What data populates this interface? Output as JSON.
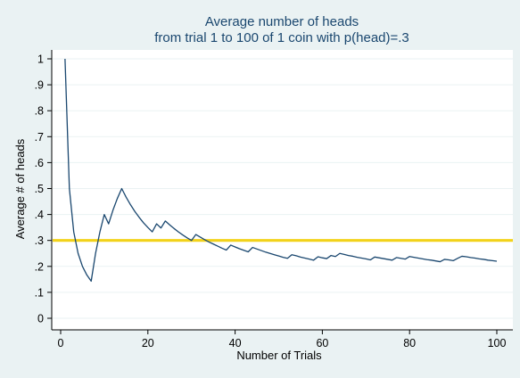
{
  "chart_data": {
    "type": "line",
    "title": "Average number of heads",
    "subtitle": "from trial 1 to 100 of 1 coin with p(head)=.3",
    "xlabel": "Number of Trials",
    "ylabel": "Average # of heads",
    "xlim": [
      0,
      100
    ],
    "ylim": [
      0,
      1
    ],
    "xticks": [
      0,
      20,
      40,
      60,
      80,
      100
    ],
    "xtick_labels": [
      "0",
      "20",
      "40",
      "60",
      "80",
      "100"
    ],
    "yticks": [
      0,
      0.1,
      0.2,
      0.3,
      0.4,
      0.5,
      0.6,
      0.7,
      0.8,
      0.9,
      1
    ],
    "ytick_labels": [
      "0",
      ".1",
      ".2",
      ".3",
      ".4",
      ".5",
      ".6",
      ".7",
      ".8",
      ".9",
      "1"
    ],
    "grid": "horizontal",
    "reference_line": {
      "y": 0.3,
      "color": "#f2d21a"
    },
    "series_color": "#1a476f",
    "x": [
      1,
      2,
      3,
      4,
      5,
      6,
      7,
      8,
      9,
      10,
      11,
      12,
      13,
      14,
      15,
      16,
      17,
      18,
      19,
      20,
      21,
      22,
      23,
      24,
      25,
      26,
      27,
      28,
      29,
      30,
      31,
      32,
      33,
      34,
      35,
      36,
      37,
      38,
      39,
      40,
      41,
      42,
      43,
      44,
      45,
      46,
      47,
      48,
      49,
      50,
      51,
      52,
      53,
      54,
      55,
      56,
      57,
      58,
      59,
      60,
      61,
      62,
      63,
      64,
      65,
      66,
      67,
      68,
      69,
      70,
      71,
      72,
      73,
      74,
      75,
      76,
      77,
      78,
      79,
      80,
      81,
      82,
      83,
      84,
      85,
      86,
      87,
      88,
      89,
      90,
      91,
      92,
      93,
      94,
      95,
      96,
      97,
      98,
      99,
      100
    ],
    "values": [
      1,
      0.5,
      0.333,
      0.25,
      0.2,
      0.167,
      0.143,
      0.25,
      0.333,
      0.4,
      0.364,
      0.417,
      0.462,
      0.5,
      0.467,
      0.438,
      0.412,
      0.389,
      0.368,
      0.35,
      0.333,
      0.364,
      0.348,
      0.375,
      0.36,
      0.346,
      0.333,
      0.321,
      0.31,
      0.3,
      0.323,
      0.313,
      0.303,
      0.294,
      0.286,
      0.278,
      0.27,
      0.263,
      0.282,
      0.275,
      0.268,
      0.262,
      0.256,
      0.273,
      0.267,
      0.261,
      0.255,
      0.25,
      0.245,
      0.24,
      0.235,
      0.231,
      0.245,
      0.241,
      0.236,
      0.232,
      0.228,
      0.224,
      0.237,
      0.233,
      0.23,
      0.242,
      0.238,
      0.25,
      0.246,
      0.242,
      0.239,
      0.235,
      0.232,
      0.229,
      0.225,
      0.236,
      0.233,
      0.23,
      0.227,
      0.224,
      0.234,
      0.231,
      0.228,
      0.238,
      0.235,
      0.232,
      0.229,
      0.226,
      0.224,
      0.221,
      0.218,
      0.227,
      0.225,
      0.222,
      0.231,
      0.239,
      0.237,
      0.234,
      0.232,
      0.229,
      0.227,
      0.224,
      0.222,
      0.22
    ]
  }
}
